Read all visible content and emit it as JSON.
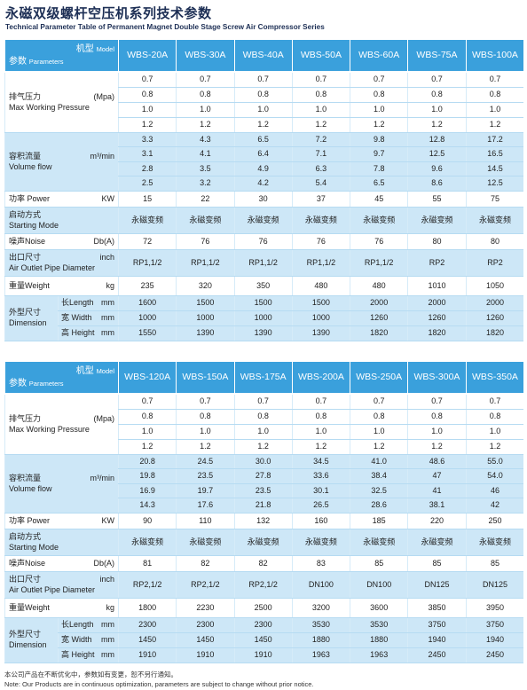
{
  "header": {
    "title": "永磁双级螺杆空压机系列技术参数",
    "subtitle": "Technical Parameter Table of Permanent Magnet Double Stage Screw Air Compressor Series"
  },
  "tables": [
    {
      "corner": {
        "model_cn": "机型",
        "model_en": "Model",
        "param_cn": "参数",
        "param_en": "Parameters"
      },
      "models": [
        "WBS-20A",
        "WBS-30A",
        "WBS-40A",
        "WBS-50A",
        "WBS-60A",
        "WBS-75A",
        "WBS-100A"
      ],
      "groups": [
        {
          "label": "排气压力",
          "unit": "(Mpa)",
          "label_en": "Max Working Pressure",
          "rows": [
            [
              "0.7",
              "0.7",
              "0.7",
              "0.7",
              "0.7",
              "0.7",
              "0.7"
            ],
            [
              "0.8",
              "0.8",
              "0.8",
              "0.8",
              "0.8",
              "0.8",
              "0.8"
            ],
            [
              "1.0",
              "1.0",
              "1.0",
              "1.0",
              "1.0",
              "1.0",
              "1.0"
            ],
            [
              "1.2",
              "1.2",
              "1.2",
              "1.2",
              "1.2",
              "1.2",
              "1.2"
            ]
          ]
        },
        {
          "label": "容积流量",
          "unit": "m³/min",
          "label_en": "Volume flow",
          "rows": [
            [
              "3.3",
              "4.3",
              "6.5",
              "7.2",
              "9.8",
              "12.8",
              "17.2"
            ],
            [
              "3.1",
              "4.1",
              "6.4",
              "7.1",
              "9.7",
              "12.5",
              "16.5"
            ],
            [
              "2.8",
              "3.5",
              "4.9",
              "6.3",
              "7.8",
              "9.6",
              "14.5"
            ],
            [
              "2.5",
              "3.2",
              "4.2",
              "5.4",
              "6.5",
              "8.6",
              "12.5"
            ]
          ]
        },
        {
          "label": "功率 Power",
          "unit": "KW",
          "rows": [
            [
              "15",
              "22",
              "30",
              "37",
              "45",
              "55",
              "75"
            ]
          ]
        },
        {
          "label": "启动方式",
          "label_en": "Starting Mode",
          "rows": [
            [
              "永磁变频",
              "永磁变频",
              "永磁变频",
              "永磁变频",
              "永磁变频",
              "永磁变频",
              "永磁变频"
            ]
          ]
        },
        {
          "label": "噪声Noise",
          "unit": "Db(A)",
          "rows": [
            [
              "72",
              "76",
              "76",
              "76",
              "76",
              "80",
              "80"
            ]
          ]
        },
        {
          "label": "出口尺寸",
          "unit": "inch",
          "label_en": "Air Outlet Pipe Diameter",
          "rows": [
            [
              "RP1,1/2",
              "RP1,1/2",
              "RP1,1/2",
              "RP1,1/2",
              "RP1,1/2",
              "RP2",
              "RP2"
            ]
          ]
        },
        {
          "label": "重量Weight",
          "unit": "kg",
          "rows": [
            [
              "235",
              "320",
              "350",
              "480",
              "480",
              "1010",
              "1050"
            ]
          ]
        },
        {
          "label": "外型尺寸",
          "label_en": "Dimension",
          "sub": [
            {
              "label": "长Length",
              "unit": "mm"
            },
            {
              "label": "宽 Width",
              "unit": "mm"
            },
            {
              "label": "高 Height",
              "unit": "mm"
            }
          ],
          "rows": [
            [
              "1600",
              "1500",
              "1500",
              "1500",
              "2000",
              "2000",
              "2000"
            ],
            [
              "1000",
              "1000",
              "1000",
              "1000",
              "1260",
              "1260",
              "1260"
            ],
            [
              "1550",
              "1390",
              "1390",
              "1390",
              "1820",
              "1820",
              "1820"
            ]
          ]
        }
      ]
    },
    {
      "corner": {
        "model_cn": "机型",
        "model_en": "Model",
        "param_cn": "参数",
        "param_en": "Parameters"
      },
      "models": [
        "WBS-120A",
        "WBS-150A",
        "WBS-175A",
        "WBS-200A",
        "WBS-250A",
        "WBS-300A",
        "WBS-350A"
      ],
      "groups": [
        {
          "label": "排气压力",
          "unit": "(Mpa)",
          "label_en": "Max Working Pressure",
          "rows": [
            [
              "0.7",
              "0.7",
              "0.7",
              "0.7",
              "0.7",
              "0.7",
              "0.7"
            ],
            [
              "0.8",
              "0.8",
              "0.8",
              "0.8",
              "0.8",
              "0.8",
              "0.8"
            ],
            [
              "1.0",
              "1.0",
              "1.0",
              "1.0",
              "1.0",
              "1.0",
              "1.0"
            ],
            [
              "1.2",
              "1.2",
              "1.2",
              "1.2",
              "1.2",
              "1.2",
              "1.2"
            ]
          ]
        },
        {
          "label": "容积流量",
          "unit": "m³/min",
          "label_en": "Volume flow",
          "rows": [
            [
              "20.8",
              "24.5",
              "30.0",
              "34.5",
              "41.0",
              "48.6",
              "55.0"
            ],
            [
              "19.8",
              "23.5",
              "27.8",
              "33.6",
              "38.4",
              "47",
              "54.0"
            ],
            [
              "16.9",
              "19.7",
              "23.5",
              "30.1",
              "32.5",
              "41",
              "46"
            ],
            [
              "14.3",
              "17.6",
              "21.8",
              "26.5",
              "28.6",
              "38.1",
              "42"
            ]
          ]
        },
        {
          "label": "功率 Power",
          "unit": "KW",
          "rows": [
            [
              "90",
              "110",
              "132",
              "160",
              "185",
              "220",
              "250"
            ]
          ]
        },
        {
          "label": "启动方式",
          "label_en": "Starting Mode",
          "rows": [
            [
              "永磁变频",
              "永磁变频",
              "永磁变频",
              "永磁变频",
              "永磁变频",
              "永磁变频",
              "永磁变频"
            ]
          ]
        },
        {
          "label": "噪声Noise",
          "unit": "Db(A)",
          "rows": [
            [
              "81",
              "82",
              "82",
              "83",
              "85",
              "85",
              "85"
            ]
          ]
        },
        {
          "label": "出口尺寸",
          "unit": "inch",
          "label_en": "Air Outlet Pipe Diameter",
          "rows": [
            [
              "RP2,1/2",
              "RP2,1/2",
              "RP2,1/2",
              "DN100",
              "DN100",
              "DN125",
              "DN125"
            ]
          ]
        },
        {
          "label": "重量Weight",
          "unit": "kg",
          "rows": [
            [
              "1800",
              "2230",
              "2500",
              "3200",
              "3600",
              "3850",
              "3950"
            ]
          ]
        },
        {
          "label": "外型尺寸",
          "label_en": "Dimension",
          "sub": [
            {
              "label": "长Length",
              "unit": "mm"
            },
            {
              "label": "宽 Width",
              "unit": "mm"
            },
            {
              "label": "高 Height",
              "unit": "mm"
            }
          ],
          "rows": [
            [
              "2300",
              "2300",
              "2300",
              "3530",
              "3530",
              "3750",
              "3750"
            ],
            [
              "1450",
              "1450",
              "1450",
              "1880",
              "1880",
              "1940",
              "1940"
            ],
            [
              "1910",
              "1910",
              "1910",
              "1963",
              "1963",
              "2450",
              "2450"
            ]
          ]
        }
      ]
    }
  ],
  "notes": [
    "本公司产品在不断优化中，参数如有变更，恕不另行通知。",
    "Note: Our Products are in continuous optimization, parameters are subject to change without prior notice."
  ]
}
